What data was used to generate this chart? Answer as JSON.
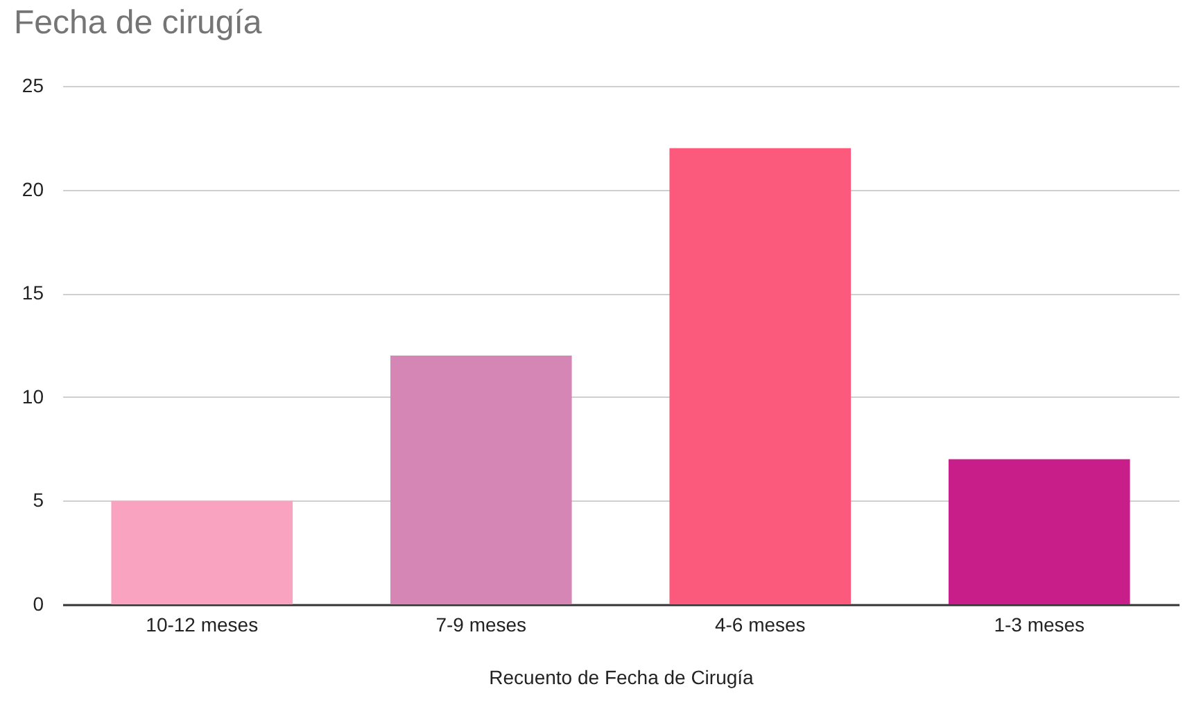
{
  "chart_data": {
    "type": "bar",
    "title": "Fecha de cirugía",
    "xlabel": "Recuento de Fecha de Cirugía",
    "categories": [
      "10-12 meses",
      "7-9 meses",
      "4-6 meses",
      "1-3 meses"
    ],
    "values": [
      5,
      12,
      22,
      7
    ],
    "colors": [
      "#f9a3c0",
      "#d686b4",
      "#fc5a7c",
      "#c81e8a"
    ],
    "ylim": [
      0,
      25
    ],
    "yticks": [
      0,
      5,
      10,
      15,
      20,
      25
    ],
    "grid": "y"
  }
}
